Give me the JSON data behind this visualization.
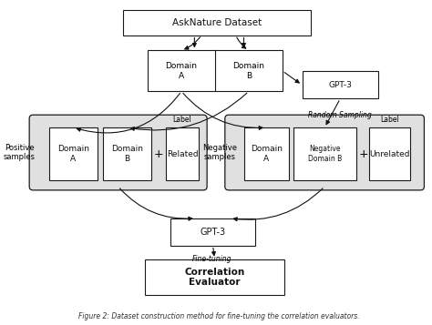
{
  "title": "AskNature Dataset",
  "domain_a_label": "Domain\nA",
  "domain_b_label": "Domain\nB",
  "gpt3_top_label": "GPT-3",
  "random_sampling_label": "Random Sampling",
  "positive_group_label": "Positive\nsamples",
  "negative_group_label": "Negative\nsamples",
  "pos_domain_a": "Domain\nA",
  "pos_domain_b": "Domain\nB",
  "pos_label_text": "Related",
  "neg_domain_a": "Domain\nA",
  "neg_domain_b": "Negative\nDomain B",
  "neg_label_text": "Unrelated",
  "label_tag": "Label",
  "gpt3_bottom_label": "GPT-3",
  "fine_tuning_label": "Fine-tuning",
  "correlation_evaluator_label": "Correlation\nEvaluator",
  "caption": "Figure 2: Dataset construction method for fine-tuning the correlation evaluators.",
  "bg_color": "#ffffff",
  "box_color": "#ffffff",
  "group_bg_color": "#e0e0e0",
  "border_color": "#1a1a1a",
  "text_color": "#111111",
  "arrow_color": "#111111",
  "fig_w": 4.74,
  "fig_h": 3.57,
  "dpi": 100
}
